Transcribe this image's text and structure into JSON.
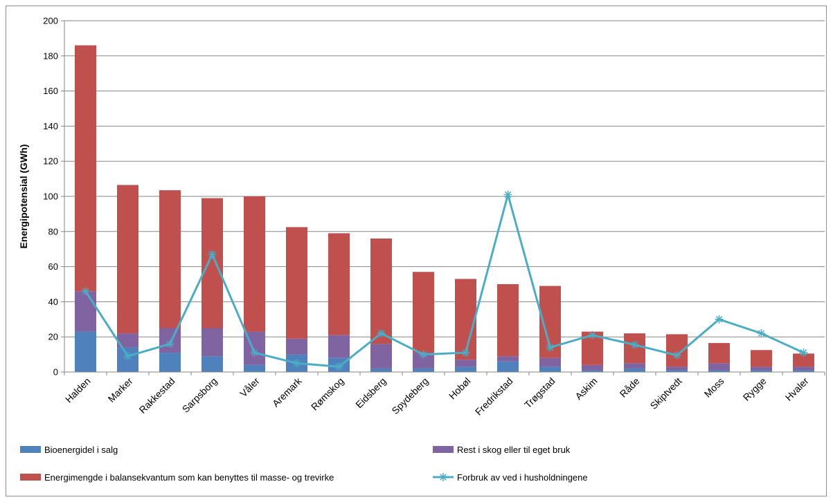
{
  "chart_data": {
    "type": "bar",
    "stacked": true,
    "title": "",
    "xlabel": "",
    "ylabel": "Energipotensial (GWh)",
    "ylim": [
      0,
      200
    ],
    "yticks": [
      0,
      20,
      40,
      60,
      80,
      100,
      120,
      140,
      160,
      180,
      200
    ],
    "grid": true,
    "legend_position": "bottom",
    "categories": [
      "Halden",
      "Marker",
      "Rakkestad",
      "Sarpsborg",
      "Våler",
      "Aremark",
      "Rømskog",
      "Eidsberg",
      "Spydeberg",
      "Hobøl",
      "Fredrikstad",
      "Trøgstad",
      "Askim",
      "Råde",
      "Skiptvedt",
      "Moss",
      "Rygge",
      "Hvaler"
    ],
    "series": [
      {
        "name": "Bioenergidel i salg",
        "type": "bar",
        "color": "#4f81bd",
        "values": [
          23,
          14,
          11,
          9,
          4,
          10,
          8,
          2,
          2,
          3,
          6,
          3,
          1,
          2,
          1,
          1,
          1,
          1
        ]
      },
      {
        "name": "Rest i skog eller til eget bruk",
        "type": "bar",
        "color": "#8064a2",
        "values": [
          23,
          8,
          14,
          16,
          19,
          9,
          13,
          14,
          9,
          4,
          3,
          5,
          3,
          3,
          2,
          4,
          2,
          2
        ]
      },
      {
        "name": "Energimengde i balansekvantum som kan benyttes til masse- og trevirke",
        "type": "bar",
        "color": "#c0504d",
        "values": [
          140,
          84.5,
          78.5,
          74,
          77,
          63.5,
          58,
          60,
          46,
          46,
          41,
          41,
          19,
          17,
          18.5,
          11.5,
          9.5,
          7.5
        ]
      },
      {
        "name": "Forbruk av ved i husholdningene",
        "type": "line",
        "color": "#4bacc6",
        "values": [
          46,
          9,
          16,
          67,
          11,
          5,
          3,
          22,
          10,
          11,
          101,
          14,
          21,
          15.5,
          9.5,
          30,
          22,
          11
        ]
      }
    ]
  }
}
